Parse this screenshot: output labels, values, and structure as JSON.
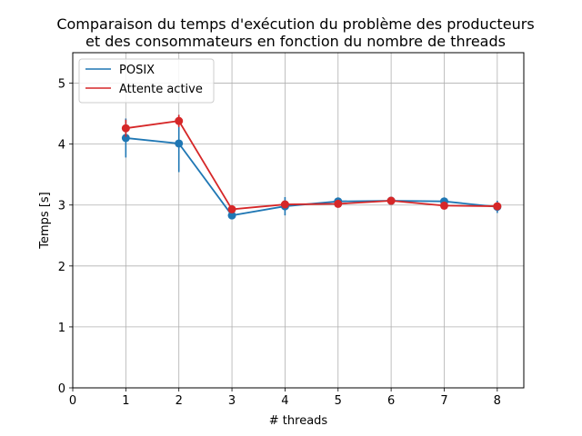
{
  "chart_data": {
    "type": "line",
    "title_lines": [
      "Comparaison du temps d'exécution du problème des producteurs",
      "et des consommateurs en fonction du nombre de threads"
    ],
    "xlabel": "# threads",
    "ylabel": "Temps [s]",
    "xlim": [
      0,
      8.5
    ],
    "ylim": [
      0,
      5.5
    ],
    "x_ticks": [
      0,
      1,
      2,
      3,
      4,
      5,
      6,
      7,
      8
    ],
    "y_ticks": [
      0,
      1,
      2,
      3,
      4,
      5
    ],
    "grid": true,
    "legend_position": "top-left",
    "x": [
      1,
      2,
      3,
      4,
      5,
      6,
      7,
      8
    ],
    "series": [
      {
        "name": "POSIX",
        "color": "#1f77b4",
        "values": [
          4.1,
          4.01,
          2.83,
          2.98,
          3.06,
          3.07,
          3.06,
          2.97
        ],
        "error": [
          0.32,
          0.47,
          0.05,
          0.15,
          0.04,
          0.04,
          0.04,
          0.1
        ]
      },
      {
        "name": "Attente active",
        "color": "#d62728",
        "values": [
          4.26,
          4.38,
          2.93,
          3.01,
          3.02,
          3.07,
          2.99,
          2.98
        ],
        "error": [
          0.14,
          0.1,
          0.04,
          0.04,
          0.04,
          0.04,
          0.04,
          0.04
        ]
      }
    ]
  }
}
